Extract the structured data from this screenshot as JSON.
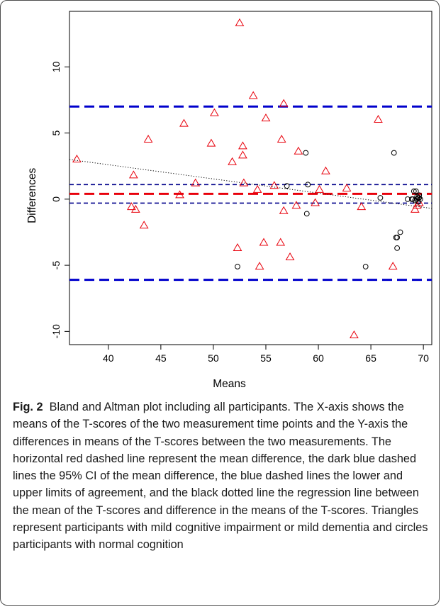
{
  "chart_data": {
    "type": "scatter",
    "title": "",
    "xlabel": "Means",
    "ylabel": "Differences",
    "xlim": [
      36.3,
      70.8
    ],
    "ylim": [
      -11,
      14.2
    ],
    "x_ticks": [
      40,
      45,
      50,
      55,
      60,
      65,
      70
    ],
    "y_ticks": [
      -10,
      -5,
      0,
      5,
      10
    ],
    "grid": false,
    "legend": "none",
    "series": [
      {
        "name": "",
        "marker": "triangle",
        "color": "#e8000b",
        "points": [
          [
            37.0,
            3.0
          ],
          [
            42.2,
            -0.6
          ],
          [
            42.4,
            1.8
          ],
          [
            42.6,
            -0.8
          ],
          [
            43.4,
            -2.0
          ],
          [
            43.8,
            4.5
          ],
          [
            46.8,
            0.3
          ],
          [
            47.2,
            5.7
          ],
          [
            48.3,
            1.2
          ],
          [
            49.8,
            4.2
          ],
          [
            50.1,
            6.5
          ],
          [
            51.8,
            2.8
          ],
          [
            52.3,
            -3.7
          ],
          [
            52.5,
            13.3
          ],
          [
            52.8,
            4.0
          ],
          [
            52.8,
            3.3
          ],
          [
            52.9,
            1.2
          ],
          [
            53.8,
            7.8
          ],
          [
            54.2,
            0.7
          ],
          [
            54.4,
            -5.1
          ],
          [
            54.8,
            -3.3
          ],
          [
            55.0,
            6.1
          ],
          [
            55.8,
            1.0
          ],
          [
            56.4,
            -3.3
          ],
          [
            56.5,
            4.5
          ],
          [
            56.7,
            7.2
          ],
          [
            56.7,
            -0.9
          ],
          [
            57.3,
            -4.4
          ],
          [
            57.9,
            -0.5
          ],
          [
            58.1,
            3.6
          ],
          [
            59.7,
            -0.3
          ],
          [
            60.1,
            0.7
          ],
          [
            60.7,
            2.1
          ],
          [
            62.7,
            0.8
          ],
          [
            63.4,
            -10.3
          ],
          [
            64.1,
            -0.6
          ],
          [
            65.7,
            6.0
          ],
          [
            67.1,
            -5.1
          ],
          [
            69.2,
            -0.8
          ],
          [
            69.4,
            -0.5
          ],
          [
            69.6,
            -0.3
          ]
        ]
      },
      {
        "name": "",
        "marker": "circle",
        "color": "#000000",
        "points": [
          [
            52.3,
            -5.1
          ],
          [
            57.0,
            1.0
          ],
          [
            58.8,
            3.5
          ],
          [
            58.9,
            -1.1
          ],
          [
            59.0,
            1.1
          ],
          [
            64.5,
            -5.1
          ],
          [
            65.9,
            0.1
          ],
          [
            67.2,
            3.5
          ],
          [
            67.4,
            -2.9
          ],
          [
            67.5,
            -2.9
          ],
          [
            67.5,
            -3.7
          ],
          [
            67.8,
            -2.5
          ],
          [
            68.5,
            0.0
          ],
          [
            68.9,
            0.0
          ],
          [
            69.0,
            0.0
          ],
          [
            69.1,
            0.6
          ],
          [
            69.2,
            -0.1
          ],
          [
            69.3,
            0.6
          ],
          [
            69.4,
            0.0
          ],
          [
            69.4,
            0.2
          ],
          [
            69.5,
            0.1
          ],
          [
            69.5,
            -0.2
          ],
          [
            69.6,
            0.3
          ],
          [
            69.6,
            0.1
          ],
          [
            69.7,
            0.0
          ]
        ]
      }
    ],
    "reference_lines": [
      {
        "y": 7.0,
        "color": "#0000cc",
        "style": "dashed",
        "weight": "heavy"
      },
      {
        "y": 1.1,
        "color": "#00008b",
        "style": "dashed",
        "weight": "light"
      },
      {
        "y": 0.4,
        "color": "#e8000b",
        "style": "dashed",
        "weight": "heavy"
      },
      {
        "y": -0.3,
        "color": "#00008b",
        "style": "dashed",
        "weight": "light"
      },
      {
        "y": -6.1,
        "color": "#0000cc",
        "style": "dashed",
        "weight": "heavy"
      }
    ],
    "regression_line": {
      "x": [
        36.3,
        70.8
      ],
      "y": [
        3.0,
        -0.7
      ],
      "color": "#000000",
      "style": "dotted"
    }
  },
  "caption": {
    "label": "Fig. 2",
    "text": "Bland and Altman plot including all participants. The X-axis shows the means of the T-scores of the two measurement time points and the Y-axis the differences in means of the T-scores between the two measurements. The horizontal red dashed line represent the mean difference, the dark blue dashed lines the 95% CI of the mean difference, the blue dashed lines the lower and upper limits of agreement, and the black dotted line the regression line between the mean of the T-scores and difference in the means of the T-scores. Triangles represent participants with mild cognitive impairment or mild dementia and circles participants with normal cognition"
  }
}
